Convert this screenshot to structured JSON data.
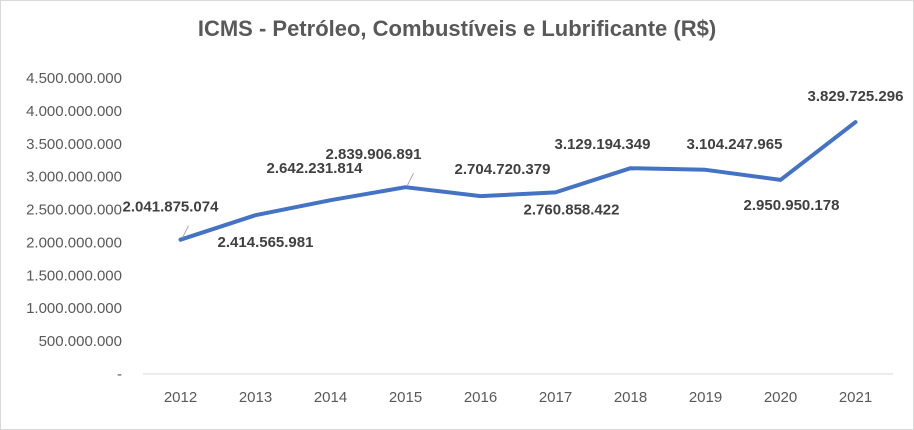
{
  "chart_data": {
    "type": "line",
    "title": "ICMS - Petróleo, Combustíveis e Lubrificante (R$)",
    "xlabel": "",
    "ylabel": "",
    "ylim": [
      0,
      4500000000
    ],
    "y_ticks": [
      {
        "value": 0,
        "label": "-"
      },
      {
        "value": 500000000,
        "label": "500.000.000"
      },
      {
        "value": 1000000000,
        "label": "1.000.000.000"
      },
      {
        "value": 1500000000,
        "label": "1.500.000.000"
      },
      {
        "value": 2000000000,
        "label": "2.000.000.000"
      },
      {
        "value": 2500000000,
        "label": "2.500.000.000"
      },
      {
        "value": 3000000000,
        "label": "3.000.000.000"
      },
      {
        "value": 3500000000,
        "label": "3.500.000.000"
      },
      {
        "value": 4000000000,
        "label": "4.000.000.000"
      },
      {
        "value": 4500000000,
        "label": "4.500.000.000"
      }
    ],
    "grid": false,
    "legend": "none",
    "categories": [
      "2012",
      "2013",
      "2014",
      "2015",
      "2016",
      "2017",
      "2018",
      "2019",
      "2020",
      "2021"
    ],
    "series": [
      {
        "values": [
          2041875074,
          2414565981,
          2642231814,
          2839906891,
          2704720379,
          2760858422,
          3129194349,
          3104247965,
          2950950178,
          3829725296
        ],
        "labels": [
          "2.041.875.074",
          "2.414.565.981",
          "2.642.231.814",
          "2.839.906.891",
          "2.704.720.379",
          "2.760.858.422",
          "3.129.194.349",
          "3.104.247.965",
          "2.950.950.178",
          "3.829.725.296"
        ],
        "color": "#4472c4"
      }
    ]
  }
}
